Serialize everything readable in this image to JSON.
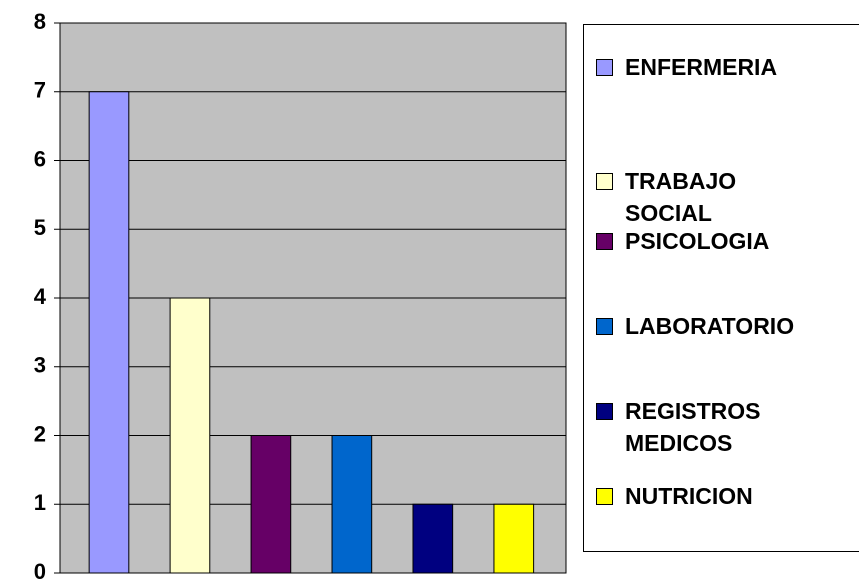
{
  "chart_data": {
    "type": "bar",
    "series": [
      {
        "name": "ENFERMERIA",
        "color": "#9999ff",
        "values": [
          7
        ]
      },
      {
        "name": "TRABAJO SOCIAL",
        "color": "#ffffcc",
        "values": [
          4
        ]
      },
      {
        "name": "PSICOLOGIA",
        "color": "#660066",
        "values": [
          2
        ]
      },
      {
        "name": "LABORATORIO",
        "color": "#0066cc",
        "values": [
          2
        ]
      },
      {
        "name": "REGISTROS MEDICOS",
        "color": "#000080",
        "values": [
          1
        ]
      },
      {
        "name": "NUTRICION",
        "color": "#ffff00",
        "values": [
          1
        ]
      }
    ],
    "ylim": [
      0,
      8
    ],
    "yticks": [
      0,
      1,
      2,
      3,
      4,
      5,
      6,
      7,
      8
    ],
    "grid": true,
    "plot_background": "#c0c0c0",
    "legend": "right"
  }
}
